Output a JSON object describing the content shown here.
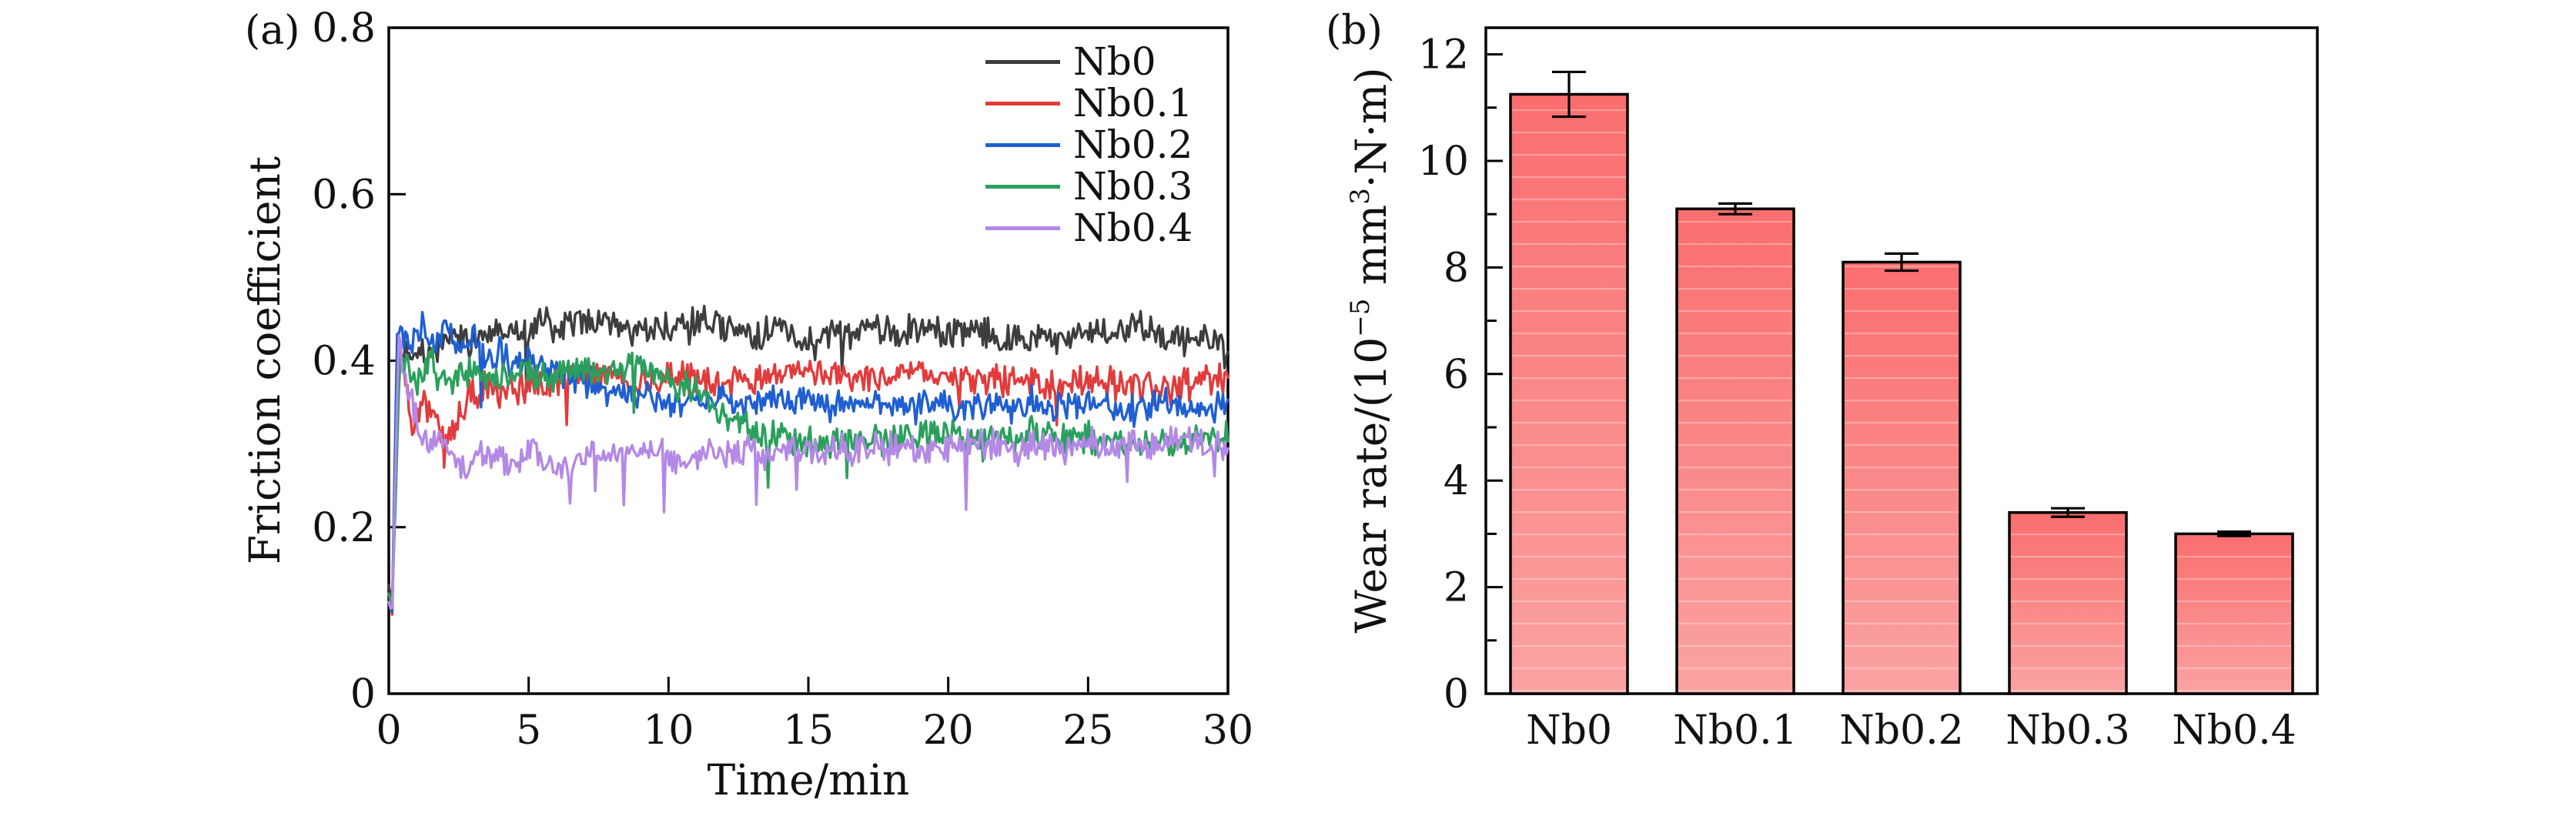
{
  "figure": {
    "background": "#ffffff",
    "text_color": "#111111",
    "axis_color": "#000000"
  },
  "panels": {
    "a": {
      "tag": "(a)",
      "xlabel": "Time/min",
      "ylabel": "Friction coefficient",
      "xtick_values": [
        0,
        5,
        10,
        15,
        20,
        25,
        30
      ],
      "xtick_labels": [
        "0",
        "5",
        "10",
        "15",
        "20",
        "25",
        "30"
      ],
      "ytick_values": [
        0,
        0.2,
        0.4,
        0.6,
        0.8
      ],
      "ytick_labels": [
        "0",
        "0.2",
        "0.4",
        "0.6",
        "0.8"
      ]
    },
    "b": {
      "tag": "(b)",
      "ylabel_parts": {
        "p1": "Wear rate/(10",
        "e1": "−5",
        "p2": " mm",
        "e2": "3",
        "p3": "·N·m)"
      },
      "ytick_values": [
        0,
        2,
        4,
        6,
        8,
        10,
        12
      ],
      "ytick_labels": [
        "0",
        "2",
        "4",
        "6",
        "8",
        "10",
        "12"
      ],
      "yminor_values": [
        1,
        3,
        5,
        7,
        9,
        11
      ]
    }
  },
  "chart_data": [
    {
      "type": "line",
      "title": "",
      "xlabel": "Time/min",
      "ylabel": "Friction coefficient",
      "xlim": [
        0,
        30
      ],
      "ylim": [
        0,
        0.8
      ],
      "grid": false,
      "legend_position": "upper right inside",
      "series": [
        {
          "name": "Nb0",
          "color": "#3d3d3d",
          "noise": 0.0155,
          "spike": 0.004,
          "seed": 7,
          "keypoints": [
            [
              0,
              0.13
            ],
            [
              0.12,
              0.105
            ],
            [
              0.3,
              0.4
            ],
            [
              0.6,
              0.41
            ],
            [
              1,
              0.415
            ],
            [
              1.5,
              0.405
            ],
            [
              2,
              0.425
            ],
            [
              3,
              0.425
            ],
            [
              4,
              0.44
            ],
            [
              5,
              0.43
            ],
            [
              5.5,
              0.45
            ],
            [
              6,
              0.435
            ],
            [
              7,
              0.455
            ],
            [
              7.5,
              0.44
            ],
            [
              8,
              0.45
            ],
            [
              9,
              0.43
            ],
            [
              10,
              0.44
            ],
            [
              11,
              0.45
            ],
            [
              12,
              0.44
            ],
            [
              13,
              0.432
            ],
            [
              14,
              0.44
            ],
            [
              15,
              0.42
            ],
            [
              16,
              0.43
            ],
            [
              17,
              0.44
            ],
            [
              18,
              0.432
            ],
            [
              19,
              0.44
            ],
            [
              20,
              0.432
            ],
            [
              21,
              0.44
            ],
            [
              22,
              0.423
            ],
            [
              23,
              0.432
            ],
            [
              24,
              0.42
            ],
            [
              25,
              0.44
            ],
            [
              26,
              0.43
            ],
            [
              27,
              0.442
            ],
            [
              28,
              0.422
            ],
            [
              29,
              0.43
            ],
            [
              30,
              0.42
            ]
          ]
        },
        {
          "name": "Nb0.1",
          "color": "#e23b3c",
          "noise": 0.016,
          "spike": 0.006,
          "seed": 13,
          "keypoints": [
            [
              0,
              0.12
            ],
            [
              0.12,
              0.1
            ],
            [
              0.35,
              0.41
            ],
            [
              0.6,
              0.38
            ],
            [
              0.85,
              0.3
            ],
            [
              1.1,
              0.35
            ],
            [
              1.6,
              0.33
            ],
            [
              2.2,
              0.31
            ],
            [
              2.8,
              0.355
            ],
            [
              3.5,
              0.37
            ],
            [
              4,
              0.365
            ],
            [
              5,
              0.37
            ],
            [
              6,
              0.375
            ],
            [
              7,
              0.38
            ],
            [
              8,
              0.385
            ],
            [
              9,
              0.375
            ],
            [
              10,
              0.38
            ],
            [
              11,
              0.378
            ],
            [
              12,
              0.375
            ],
            [
              13,
              0.38
            ],
            [
              14,
              0.377
            ],
            [
              15,
              0.383
            ],
            [
              16,
              0.385
            ],
            [
              17,
              0.38
            ],
            [
              18,
              0.378
            ],
            [
              19,
              0.382
            ],
            [
              20,
              0.385
            ],
            [
              21,
              0.38
            ],
            [
              22,
              0.378
            ],
            [
              23,
              0.375
            ],
            [
              24,
              0.372
            ],
            [
              25,
              0.378
            ],
            [
              26,
              0.373
            ],
            [
              27,
              0.37
            ],
            [
              28,
              0.368
            ],
            [
              29,
              0.372
            ],
            [
              30,
              0.375
            ]
          ]
        },
        {
          "name": "Nb0.2",
          "color": "#1f5fd2",
          "noise": 0.0145,
          "spike": 0.004,
          "seed": 21,
          "keypoints": [
            [
              0,
              0.11
            ],
            [
              0.12,
              0.1
            ],
            [
              0.3,
              0.44
            ],
            [
              0.8,
              0.42
            ],
            [
              1.2,
              0.445
            ],
            [
              1.6,
              0.42
            ],
            [
              2,
              0.44
            ],
            [
              2.5,
              0.42
            ],
            [
              3,
              0.43
            ],
            [
              3.5,
              0.4
            ],
            [
              4,
              0.415
            ],
            [
              4.5,
              0.39
            ],
            [
              5,
              0.4
            ],
            [
              6,
              0.385
            ],
            [
              7,
              0.375
            ],
            [
              8,
              0.362
            ],
            [
              9,
              0.36
            ],
            [
              10,
              0.35
            ],
            [
              11,
              0.355
            ],
            [
              12,
              0.35
            ],
            [
              13,
              0.345
            ],
            [
              14,
              0.352
            ],
            [
              15,
              0.35
            ],
            [
              16,
              0.345
            ],
            [
              17,
              0.35
            ],
            [
              18,
              0.346
            ],
            [
              19,
              0.35
            ],
            [
              20,
              0.35
            ],
            [
              21,
              0.345
            ],
            [
              22,
              0.34
            ],
            [
              23,
              0.35
            ],
            [
              24,
              0.346
            ],
            [
              25,
              0.35
            ],
            [
              26,
              0.345
            ],
            [
              27,
              0.34
            ],
            [
              28,
              0.35
            ],
            [
              29,
              0.34
            ],
            [
              30,
              0.345
            ]
          ]
        },
        {
          "name": "Nb0.3",
          "color": "#2aa05c",
          "noise": 0.016,
          "spike": 0.013,
          "seed": 33,
          "keypoints": [
            [
              0,
              0.12
            ],
            [
              0.12,
              0.105
            ],
            [
              0.4,
              0.4
            ],
            [
              1,
              0.38
            ],
            [
              1.5,
              0.4
            ],
            [
              2,
              0.372
            ],
            [
              3,
              0.387
            ],
            [
              4,
              0.377
            ],
            [
              5,
              0.39
            ],
            [
              6,
              0.382
            ],
            [
              7,
              0.39
            ],
            [
              8,
              0.386
            ],
            [
              9,
              0.39
            ],
            [
              10,
              0.38
            ],
            [
              11,
              0.362
            ],
            [
              12,
              0.337
            ],
            [
              13,
              0.317
            ],
            [
              14,
              0.306
            ],
            [
              15,
              0.3
            ],
            [
              16,
              0.3
            ],
            [
              17,
              0.303
            ],
            [
              18,
              0.306
            ],
            [
              19,
              0.308
            ],
            [
              20,
              0.31
            ],
            [
              21,
              0.312
            ],
            [
              22,
              0.31
            ],
            [
              23,
              0.314
            ],
            [
              24,
              0.31
            ],
            [
              25,
              0.306
            ],
            [
              26,
              0.305
            ],
            [
              27,
              0.3
            ],
            [
              28,
              0.298
            ],
            [
              29,
              0.3
            ],
            [
              30,
              0.308
            ]
          ]
        },
        {
          "name": "Nb0.4",
          "color": "#b488e6",
          "noise": 0.016,
          "spike": 0.013,
          "seed": 47,
          "keypoints": [
            [
              0,
              0.11
            ],
            [
              0.12,
              0.1
            ],
            [
              0.35,
              0.43
            ],
            [
              0.7,
              0.36
            ],
            [
              1,
              0.325
            ],
            [
              1.4,
              0.3
            ],
            [
              2,
              0.303
            ],
            [
              2.6,
              0.272
            ],
            [
              3.2,
              0.29
            ],
            [
              4,
              0.278
            ],
            [
              5,
              0.29
            ],
            [
              6,
              0.272
            ],
            [
              7,
              0.286
            ],
            [
              8,
              0.29
            ],
            [
              9,
              0.293
            ],
            [
              10,
              0.286
            ],
            [
              11,
              0.29
            ],
            [
              12,
              0.285
            ],
            [
              13,
              0.29
            ],
            [
              14,
              0.288
            ],
            [
              15,
              0.292
            ],
            [
              16,
              0.29
            ],
            [
              17,
              0.295
            ],
            [
              18,
              0.297
            ],
            [
              19,
              0.292
            ],
            [
              20,
              0.3
            ],
            [
              21,
              0.3
            ],
            [
              22,
              0.295
            ],
            [
              23,
              0.298
            ],
            [
              24,
              0.295
            ],
            [
              25,
              0.299
            ],
            [
              26,
              0.297
            ],
            [
              27,
              0.3
            ],
            [
              28,
              0.3
            ],
            [
              29,
              0.298
            ],
            [
              30,
              0.3
            ]
          ]
        }
      ]
    },
    {
      "type": "bar",
      "title": "",
      "ylabel": "Wear rate/(10^-5 mm^3·N·m)",
      "categories": [
        "Nb0",
        "Nb0.1",
        "Nb0.2",
        "Nb0.3",
        "Nb0.4"
      ],
      "values": [
        11.25,
        9.1,
        8.1,
        3.4,
        3.0
      ],
      "errors": [
        0.42,
        0.1,
        0.16,
        0.08,
        0.04
      ],
      "ylim": [
        0,
        12.5
      ],
      "grid": false,
      "bar_fill_top": "#fa6e6e",
      "bar_fill_bottom": "#fba2a2",
      "bar_stroke": "#000000"
    }
  ]
}
